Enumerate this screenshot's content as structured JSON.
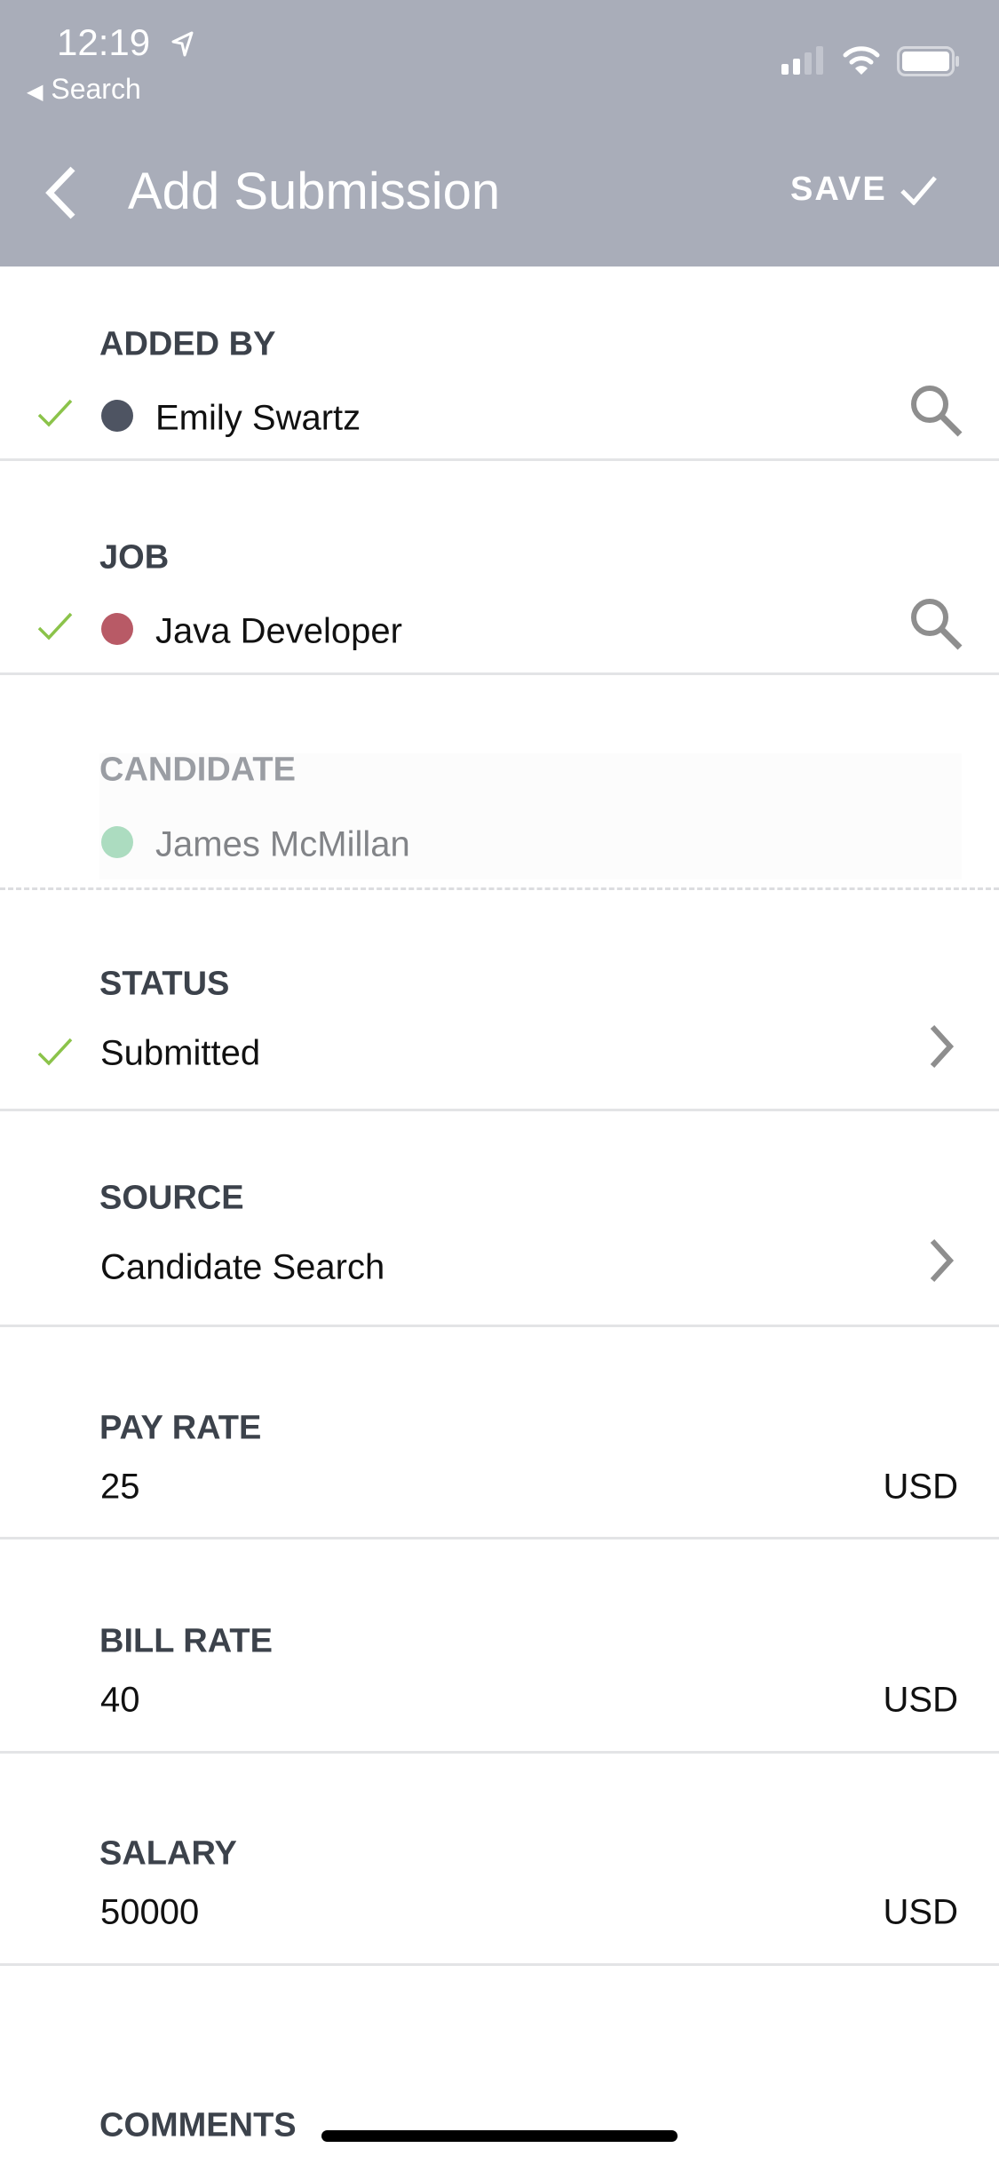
{
  "status_bar": {
    "time": "12:19",
    "back_app": "Search",
    "icons": [
      "location-arrow-icon",
      "signal-icon",
      "wifi-icon",
      "battery-icon"
    ]
  },
  "header": {
    "title": "Add Submission",
    "save_label": "SAVE",
    "background": "#a9adb9"
  },
  "colors": {
    "check": "#8bc34a",
    "label": "#3c424b",
    "emily_dot": "#4e5462",
    "job_dot": "#b85a66",
    "candidate_dot": "#acdcc0"
  },
  "fields": {
    "added_by": {
      "label": "ADDED BY",
      "value": "Emily Swartz"
    },
    "job": {
      "label": "JOB",
      "value": "Java Developer"
    },
    "candidate": {
      "label": "CANDIDATE",
      "value": "James McMillan"
    },
    "status": {
      "label": "STATUS",
      "value": "Submitted"
    },
    "source": {
      "label": "SOURCE",
      "value": "Candidate Search"
    },
    "pay_rate": {
      "label": "PAY RATE",
      "value": "25",
      "unit": "USD"
    },
    "bill_rate": {
      "label": "BILL RATE",
      "value": "40",
      "unit": "USD"
    },
    "salary": {
      "label": "SALARY",
      "value": "50000",
      "unit": "USD"
    },
    "comments": {
      "label": "COMMENTS"
    }
  }
}
